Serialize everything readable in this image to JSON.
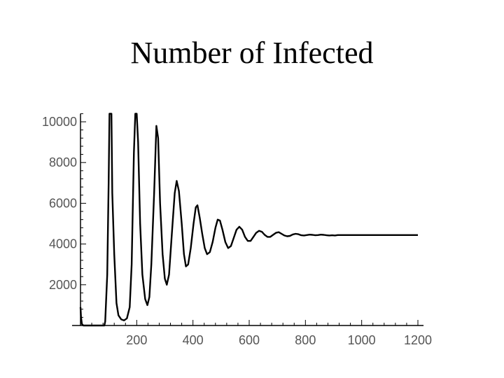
{
  "chart_data": {
    "type": "line",
    "title": "Number of Infected",
    "xlabel": "",
    "ylabel": "",
    "xlim": [
      -30,
      1220
    ],
    "ylim": [
      0,
      10400
    ],
    "xticks": [
      200,
      400,
      600,
      800,
      1000,
      1200
    ],
    "yticks": [
      2000,
      4000,
      6000,
      8000,
      10000
    ],
    "grid": false,
    "series": [
      {
        "points": [
          [
            0,
            900
          ],
          [
            2,
            400
          ],
          [
            5,
            80
          ],
          [
            10,
            0
          ],
          [
            85,
            0
          ],
          [
            88,
            200
          ],
          [
            95,
            2500
          ],
          [
            100,
            7000
          ],
          [
            103,
            10400
          ],
          [
            110,
            10400
          ],
          [
            113,
            6500
          ],
          [
            120,
            3500
          ],
          [
            128,
            1100
          ],
          [
            135,
            500
          ],
          [
            145,
            300
          ],
          [
            155,
            250
          ],
          [
            165,
            350
          ],
          [
            175,
            900
          ],
          [
            182,
            3000
          ],
          [
            190,
            8500
          ],
          [
            195,
            10400
          ],
          [
            200,
            10400
          ],
          [
            205,
            9000
          ],
          [
            212,
            5000
          ],
          [
            220,
            2500
          ],
          [
            230,
            1300
          ],
          [
            238,
            1000
          ],
          [
            245,
            1400
          ],
          [
            252,
            3000
          ],
          [
            262,
            6500
          ],
          [
            270,
            9800
          ],
          [
            276,
            9200
          ],
          [
            283,
            6000
          ],
          [
            292,
            3500
          ],
          [
            300,
            2300
          ],
          [
            307,
            2000
          ],
          [
            315,
            2500
          ],
          [
            325,
            4500
          ],
          [
            335,
            6500
          ],
          [
            342,
            7100
          ],
          [
            350,
            6600
          ],
          [
            360,
            5000
          ],
          [
            368,
            3500
          ],
          [
            375,
            2900
          ],
          [
            383,
            3000
          ],
          [
            392,
            3800
          ],
          [
            402,
            5000
          ],
          [
            410,
            5800
          ],
          [
            416,
            5900
          ],
          [
            424,
            5300
          ],
          [
            433,
            4500
          ],
          [
            442,
            3800
          ],
          [
            450,
            3500
          ],
          [
            460,
            3600
          ],
          [
            470,
            4100
          ],
          [
            480,
            4800
          ],
          [
            488,
            5200
          ],
          [
            496,
            5150
          ],
          [
            505,
            4700
          ],
          [
            515,
            4100
          ],
          [
            525,
            3800
          ],
          [
            535,
            3900
          ],
          [
            545,
            4300
          ],
          [
            555,
            4700
          ],
          [
            565,
            4850
          ],
          [
            575,
            4700
          ],
          [
            585,
            4350
          ],
          [
            595,
            4150
          ],
          [
            605,
            4150
          ],
          [
            615,
            4350
          ],
          [
            625,
            4550
          ],
          [
            635,
            4650
          ],
          [
            645,
            4600
          ],
          [
            655,
            4450
          ],
          [
            665,
            4350
          ],
          [
            675,
            4350
          ],
          [
            685,
            4450
          ],
          [
            695,
            4550
          ],
          [
            705,
            4580
          ],
          [
            715,
            4500
          ],
          [
            725,
            4420
          ],
          [
            735,
            4380
          ],
          [
            745,
            4400
          ],
          [
            755,
            4470
          ],
          [
            765,
            4500
          ],
          [
            775,
            4480
          ],
          [
            785,
            4430
          ],
          [
            795,
            4420
          ],
          [
            805,
            4440
          ],
          [
            815,
            4460
          ],
          [
            825,
            4450
          ],
          [
            835,
            4430
          ],
          [
            845,
            4440
          ],
          [
            855,
            4460
          ],
          [
            865,
            4450
          ],
          [
            875,
            4430
          ],
          [
            885,
            4420
          ],
          [
            895,
            4430
          ],
          [
            905,
            4420
          ],
          [
            915,
            4440
          ],
          [
            1200,
            4440
          ]
        ]
      }
    ]
  }
}
